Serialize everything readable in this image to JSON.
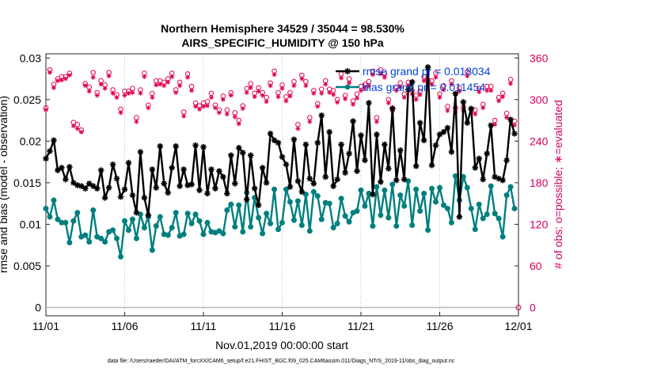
{
  "chart_data": {
    "type": "line",
    "title": [
      "Northern Hemisphere 34529 / 35044 = 98.530%",
      "AIRS_SPECIFIC_HUMIDITY @ 150 hPa"
    ],
    "xlabel": "Nov.01,2019 00:00:00 start",
    "ylabel": "rmse and bias (model - observation)",
    "y2label": "# of obs: o=possible; ∗=evaluated",
    "footer": "data file: /Users/raeder/DAI/ATM_forcXX/CAM6_setup/f.e21.FHIST_BGC.f09_025.CAM6assim.011/Diags_NTrS_2019-11/obs_diag_output.nc",
    "x_tick_labels": [
      "11/01",
      "11/06",
      "11/11",
      "11/16",
      "11/21",
      "11/26",
      "12/01"
    ],
    "x_tick_days": [
      0,
      5,
      10,
      15,
      20,
      25,
      30
    ],
    "xlim": [
      0,
      30
    ],
    "ylim": [
      -0.001,
      0.0305
    ],
    "y_ticks": [
      0,
      0.005,
      0.01,
      0.015,
      0.02,
      0.025,
      0.03
    ],
    "y_tick_labels": [
      "0",
      "0.005",
      "0.01",
      "0.015",
      "0.02",
      "0.025",
      "0.03"
    ],
    "y2lim": [
      -12,
      366
    ],
    "y2_ticks": [
      0,
      60,
      120,
      180,
      240,
      300,
      360
    ],
    "legend": [
      {
        "label": "rmse grand pr = 0.018034",
        "color": "#000000"
      },
      {
        "label": "bias grand pr = 0.011454",
        "color": "#007f7f"
      }
    ],
    "x": [
      0,
      0.25,
      0.5,
      0.75,
      1,
      1.25,
      1.5,
      1.75,
      2,
      2.25,
      2.5,
      2.75,
      3,
      3.25,
      3.5,
      3.75,
      4,
      4.25,
      4.5,
      4.75,
      5,
      5.25,
      5.5,
      5.75,
      6,
      6.25,
      6.5,
      6.75,
      7,
      7.25,
      7.5,
      7.75,
      8,
      8.25,
      8.5,
      8.75,
      9,
      9.25,
      9.5,
      9.75,
      10,
      10.25,
      10.5,
      10.75,
      11,
      11.25,
      11.5,
      11.75,
      12,
      12.25,
      12.5,
      12.75,
      13,
      13.25,
      13.5,
      13.75,
      14,
      14.25,
      14.5,
      14.75,
      15,
      15.25,
      15.5,
      15.75,
      16,
      16.25,
      16.5,
      16.75,
      17,
      17.25,
      17.5,
      17.75,
      18,
      18.25,
      18.5,
      18.75,
      19,
      19.25,
      19.5,
      19.75,
      20,
      20.25,
      20.5,
      20.75,
      21,
      21.25,
      21.5,
      21.75,
      22,
      22.25,
      22.5,
      22.75,
      23,
      23.25,
      23.5,
      23.75,
      24,
      24.25,
      24.5,
      24.75,
      25,
      25.25,
      25.5,
      25.75,
      26,
      26.25,
      26.5,
      26.75,
      27,
      27.25,
      27.5,
      27.75,
      28,
      28.25,
      28.5,
      28.75,
      29,
      29.25,
      29.5,
      29.75
    ],
    "series": [
      {
        "name": "rmse",
        "color": "#000000",
        "marker": "asterisk",
        "values": [
          0.0179,
          0.0188,
          0.0201,
          0.0165,
          0.0168,
          0.0154,
          0.0169,
          0.015,
          0.0147,
          0.0146,
          0.0143,
          0.0149,
          0.0146,
          0.0143,
          0.0165,
          0.0132,
          0.0144,
          0.0172,
          0.0155,
          0.0133,
          0.0142,
          0.0174,
          0.0135,
          0.0114,
          0.0187,
          0.0132,
          0.0111,
          0.0166,
          0.0144,
          0.0194,
          0.0149,
          0.0138,
          0.0168,
          0.0194,
          0.0146,
          0.0166,
          0.0147,
          0.0148,
          0.0195,
          0.0141,
          0.0193,
          0.0137,
          0.0166,
          0.0143,
          0.0164,
          0.0157,
          0.0137,
          0.0183,
          0.0149,
          0.0192,
          0.0186,
          0.013,
          0.0183,
          0.0143,
          0.0123,
          0.0168,
          0.015,
          0.0209,
          0.0201,
          0.0198,
          0.0181,
          0.0172,
          0.0145,
          0.0202,
          0.0152,
          0.0139,
          0.0196,
          0.0155,
          0.0149,
          0.0198,
          0.0231,
          0.0157,
          0.0211,
          0.0146,
          0.0154,
          0.0196,
          0.0162,
          0.0185,
          0.0224,
          0.0164,
          0.0207,
          0.0177,
          0.0246,
          0.0136,
          0.0208,
          0.0151,
          0.0196,
          0.0167,
          0.0239,
          0.0153,
          0.0189,
          0.0154,
          0.0262,
          0.0271,
          0.017,
          0.0222,
          0.0201,
          0.0289,
          0.0171,
          0.0195,
          0.0208,
          0.0211,
          0.0216,
          0.0187,
          0.0257,
          0.0109,
          0.0247,
          0.0222,
          0.0239,
          0.0168,
          0.0179,
          0.0154,
          0.0185,
          0.0219,
          0.0157,
          0.0155,
          0.0153,
          0.0177,
          0.0226,
          0.0209
        ]
      },
      {
        "name": "bias",
        "color": "#007f7f",
        "marker": "circle",
        "values": [
          0.0119,
          0.0109,
          0.0129,
          0.0106,
          0.0102,
          0.0102,
          0.0078,
          0.0104,
          0.0114,
          0.0085,
          0.0087,
          0.0079,
          0.0117,
          0.0085,
          0.0083,
          0.0079,
          0.0091,
          0.0093,
          0.0083,
          0.0061,
          0.0104,
          0.0093,
          0.0106,
          0.0083,
          0.0112,
          0.0096,
          0.0109,
          0.0069,
          0.0098,
          0.0109,
          0.0088,
          0.0087,
          0.0096,
          0.0114,
          0.0086,
          0.0088,
          0.0113,
          0.0101,
          0.0112,
          0.0104,
          0.0088,
          0.0102,
          0.0091,
          0.009,
          0.0092,
          0.0089,
          0.0117,
          0.0124,
          0.0097,
          0.0123,
          0.0091,
          0.0138,
          0.0097,
          0.0132,
          0.0108,
          0.0089,
          0.0113,
          0.0101,
          0.0142,
          0.0094,
          0.0102,
          0.0142,
          0.0127,
          0.0105,
          0.0128,
          0.0099,
          0.0136,
          0.0092,
          0.0139,
          0.0134,
          0.0106,
          0.0126,
          0.0125,
          0.0096,
          0.0101,
          0.0131,
          0.011,
          0.0103,
          0.0114,
          0.0116,
          0.0141,
          0.0122,
          0.0137,
          0.0098,
          0.0145,
          0.0111,
          0.0141,
          0.0108,
          0.0148,
          0.0098,
          0.0135,
          0.0122,
          0.0152,
          0.0099,
          0.0142,
          0.0116,
          0.0137,
          0.0093,
          0.0143,
          0.0127,
          0.0144,
          0.0123,
          0.0119,
          0.0102,
          0.0158,
          0.0129,
          0.0157,
          0.0144,
          0.0119,
          0.0094,
          0.0124,
          0.0107,
          0.0112,
          0.0146,
          0.0113,
          0.0107,
          0.0085,
          0.0135,
          0.0145,
          0.0119
        ]
      },
      {
        "name": "obs possible",
        "axis": "right",
        "color": "#e0004f",
        "marker": "open-circle",
        "values": [
          288,
          343,
          322,
          330,
          333,
          333,
          338,
          267,
          264,
          256,
          323,
          318,
          339,
          310,
          327,
          321,
          339,
          314,
          307,
          286,
          312,
          312,
          316,
          274,
          314,
          338,
          292,
          309,
          327,
          327,
          325,
          330,
          338,
          314,
          325,
          282,
          337,
          319,
          295,
          291,
          295,
          297,
          309,
          292,
          285,
          305,
          285,
          310,
          281,
          270,
          291,
          316,
          323,
          309,
          317,
          310,
          303,
          324,
          341,
          310,
          321,
          304,
          310,
          326,
          264,
          335,
          326,
          274,
          313,
          294,
          315,
          327,
          315,
          313,
          300,
          337,
          306,
          330,
          298,
          308,
          319,
          322,
          326,
          341,
          274,
          343,
          337,
          300,
          288,
          318,
          324,
          308,
          325,
          313,
          306,
          312,
          333,
          328,
          327,
          338,
          308,
          320,
          290,
          327,
          288,
          317,
          289,
          340,
          286,
          285,
          316,
          293,
          319,
          319,
          270,
          303,
          309,
          280,
          329,
          269
        ]
      },
      {
        "name": "obs evaluated",
        "axis": "right",
        "color": "#e0004f",
        "marker": "asterisk",
        "values": [
          285,
          339,
          317,
          327,
          328,
          330,
          335,
          262,
          258,
          253,
          320,
          312,
          332,
          306,
          322,
          316,
          334,
          309,
          303,
          281,
          306,
          309,
          310,
          268,
          309,
          333,
          288,
          303,
          321,
          322,
          320,
          325,
          333,
          310,
          320,
          276,
          332,
          313,
          290,
          286,
          290,
          291,
          303,
          288,
          281,
          300,
          279,
          306,
          275,
          265,
          287,
          310,
          317,
          304,
          312,
          306,
          297,
          320,
          336,
          304,
          316,
          298,
          305,
          320,
          258,
          330,
          320,
          268,
          309,
          290,
          309,
          322,
          310,
          307,
          296,
          331,
          301,
          324,
          293,
          302,
          313,
          317,
          320,
          336,
          268,
          337,
          332,
          295,
          283,
          313,
          318,
          303,
          320,
          308,
          300,
          307,
          327,
          323,
          322,
          332,
          303,
          314,
          284,
          322,
          282,
          312,
          284,
          334,
          281,
          279,
          311,
          288,
          313,
          313,
          264,
          298,
          304,
          274,
          323,
          263
        ]
      }
    ]
  }
}
